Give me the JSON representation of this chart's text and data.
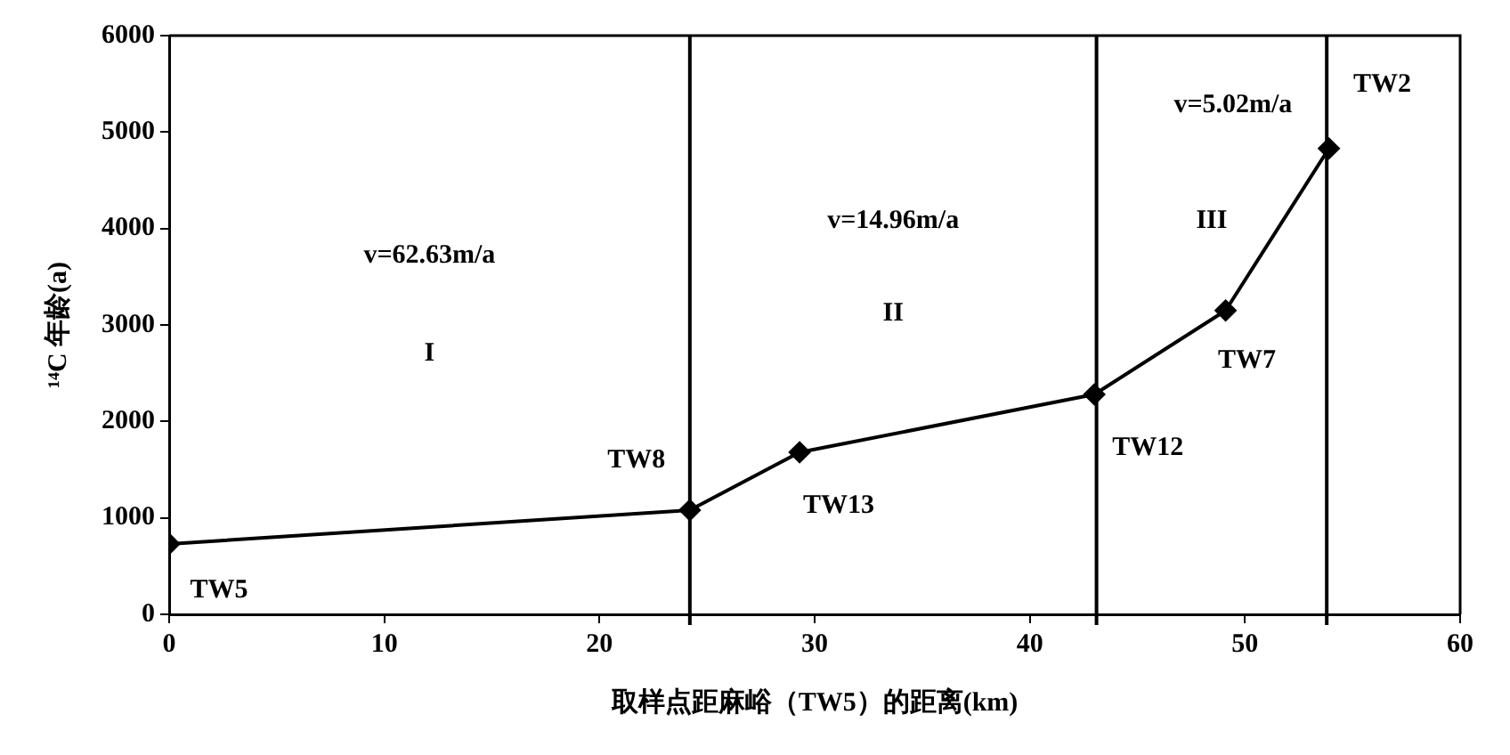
{
  "chart_data": {
    "type": "line",
    "xlabel": "取样点距麻峪（TW5）的距离(km)",
    "ylabel": "¹⁴C 年龄(a)",
    "x": [
      0,
      24.2,
      29.3,
      43.0,
      49.1,
      53.9
    ],
    "series": [
      {
        "color": "#000000",
        "values": [
          730,
          1080,
          1680,
          2280,
          3150,
          4830
        ]
      }
    ],
    "xlim": [
      0,
      60
    ],
    "xticks": [
      0,
      10,
      20,
      30,
      40,
      50,
      60
    ],
    "ylim": [
      0,
      6000
    ],
    "yticks": [
      0,
      1000,
      2000,
      3000,
      4000,
      5000,
      6000
    ],
    "grid": false,
    "legend": false,
    "marker": "diamond",
    "line_style": "solid",
    "ref_lines": [
      {
        "axis": "x",
        "value": 24.2,
        "color": "#000000"
      },
      {
        "axis": "x",
        "value": 43.1,
        "color": "#000000"
      },
      {
        "axis": "x",
        "value": 53.8,
        "color": "#000000"
      }
    ],
    "annotations": [
      "v=62.63m/a",
      "I",
      "v=14.96m/a",
      "II",
      "v=5.02m/a",
      "III",
      {
        "text": "TW5",
        "x": 0,
        "y": 730
      },
      {
        "text": "TW8",
        "x": 24.2,
        "y": 1080
      },
      {
        "text": "TW13",
        "x": 29.3,
        "y": 1680
      },
      {
        "text": "TW12",
        "x": 43.0,
        "y": 2280
      },
      {
        "text": "TW7",
        "x": 49.1,
        "y": 3150
      },
      {
        "text": "TW2",
        "x": 53.9,
        "y": 4830
      }
    ]
  }
}
